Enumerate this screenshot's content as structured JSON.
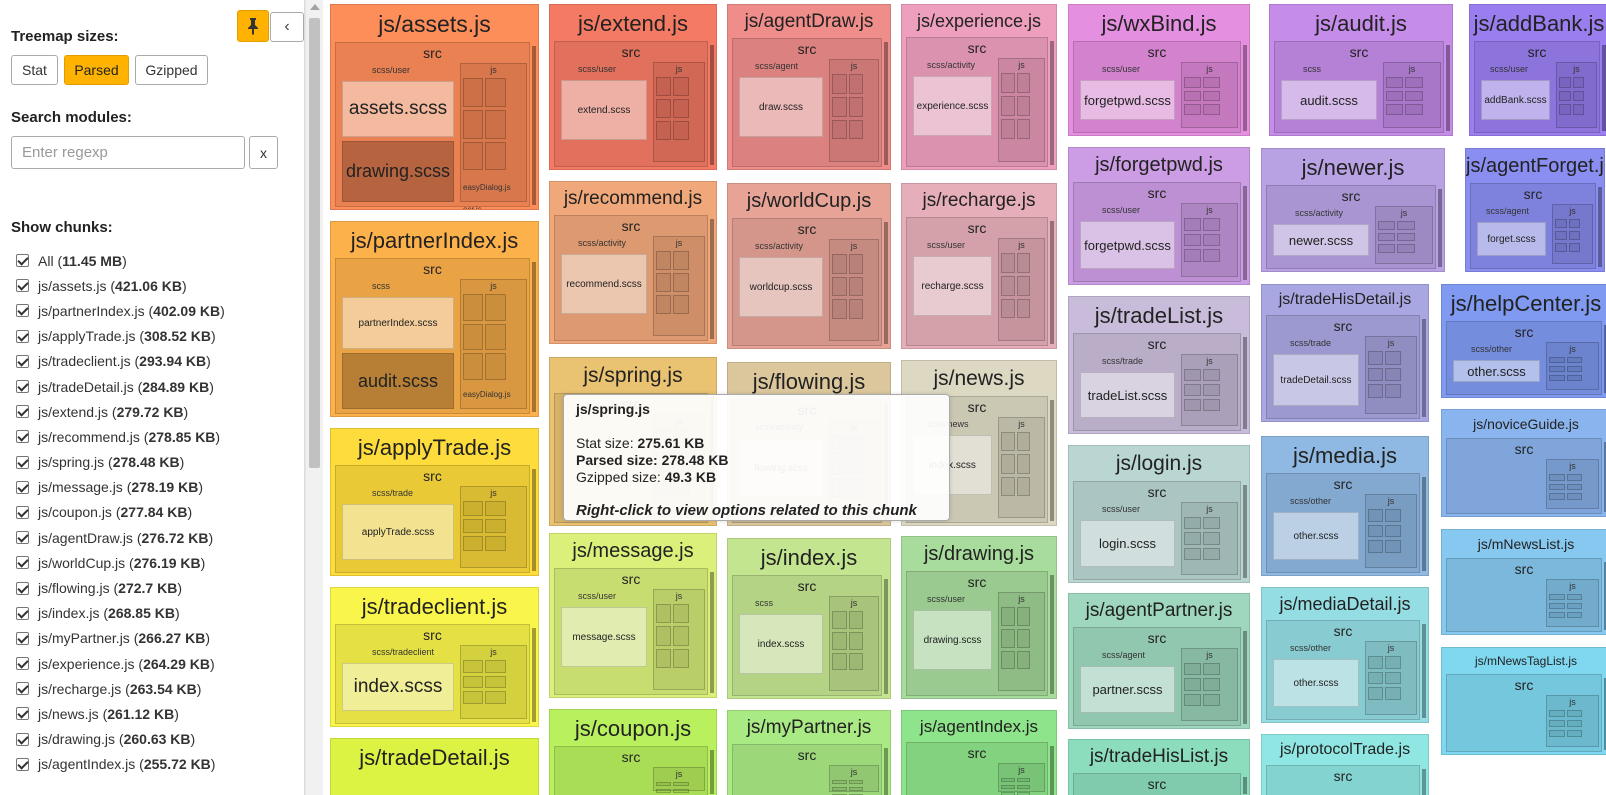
{
  "sidebar": {
    "treemap_sizes_label": "Treemap sizes:",
    "size_buttons": [
      {
        "label": "Stat",
        "active": false
      },
      {
        "label": "Parsed",
        "active": true
      },
      {
        "label": "Gzipped",
        "active": false
      }
    ],
    "search_label": "Search modules:",
    "search_placeholder": "Enter regexp",
    "search_value": "",
    "clear_label": "x",
    "collapse_icon": "‹",
    "show_chunks_label": "Show chunks:",
    "chunks": [
      {
        "name": "All",
        "size": "11.45 MB"
      },
      {
        "name": "js/assets.js",
        "size": "421.06 KB"
      },
      {
        "name": "js/partnerIndex.js",
        "size": "402.09 KB"
      },
      {
        "name": "js/applyTrade.js",
        "size": "308.52 KB"
      },
      {
        "name": "js/tradeclient.js",
        "size": "293.94 KB"
      },
      {
        "name": "js/tradeDetail.js",
        "size": "284.89 KB"
      },
      {
        "name": "js/extend.js",
        "size": "279.72 KB"
      },
      {
        "name": "js/recommend.js",
        "size": "278.85 KB"
      },
      {
        "name": "js/spring.js",
        "size": "278.48 KB"
      },
      {
        "name": "js/message.js",
        "size": "278.19 KB"
      },
      {
        "name": "js/coupon.js",
        "size": "277.84 KB"
      },
      {
        "name": "js/agentDraw.js",
        "size": "276.72 KB"
      },
      {
        "name": "js/worldCup.js",
        "size": "276.19 KB"
      },
      {
        "name": "js/flowing.js",
        "size": "272.7 KB"
      },
      {
        "name": "js/index.js",
        "size": "268.85 KB"
      },
      {
        "name": "js/myPartner.js",
        "size": "266.27 KB"
      },
      {
        "name": "js/experience.js",
        "size": "264.29 KB"
      },
      {
        "name": "js/recharge.js",
        "size": "263.54 KB"
      },
      {
        "name": "js/news.js",
        "size": "261.12 KB"
      },
      {
        "name": "js/drawing.js",
        "size": "260.63 KB"
      },
      {
        "name": "js/agentIndex.js",
        "size": "255.72 KB"
      }
    ]
  },
  "treemap": {
    "src_label": "src",
    "js_label": "js",
    "chunks": [
      {
        "title": "js/assets.js",
        "color": "#fd8d59",
        "sub": "scss/user",
        "mod": "assets.scss",
        "mod2": "drawing.scss",
        "extra": [
          "easyDialog.js",
          "ocr.js"
        ]
      },
      {
        "title": "js/partnerIndex.js",
        "color": "#fdb14b",
        "sub": "scss",
        "mod": "partnerIndex.scss",
        "mod2": "audit.scss",
        "extra": [
          "easyDialog.js"
        ]
      },
      {
        "title": "js/applyTrade.js",
        "color": "#fddc3b",
        "sub": "scss/trade",
        "mod": "applyTrade.scss"
      },
      {
        "title": "js/tradeclient.js",
        "color": "#f9f54a",
        "sub": "scss/tradeclient",
        "mod": "index.scss"
      },
      {
        "title": "js/tradeDetail.js",
        "color": "#ddf344",
        "sub": "",
        "mod": ""
      },
      {
        "title": "js/extend.js",
        "color": "#f57a64",
        "sub": "scss/user",
        "mod": "extend.scss"
      },
      {
        "title": "js/recommend.js",
        "color": "#f0a77a",
        "sub": "scss/activity",
        "mod": "recommend.scss"
      },
      {
        "title": "js/spring.js",
        "color": "#e9c272",
        "sub": "",
        "mod": ""
      },
      {
        "title": "js/message.js",
        "color": "#daf07a",
        "sub": "scss/user",
        "mod": "message.scss"
      },
      {
        "title": "js/coupon.js",
        "color": "#b9f05e",
        "sub": "",
        "mod": ""
      },
      {
        "title": "js/agentDraw.js",
        "color": "#ee8d8a",
        "sub": "scss/agent",
        "mod": "draw.scss"
      },
      {
        "title": "js/worldCup.js",
        "color": "#e6a396",
        "sub": "scss/activity",
        "mod": "worldcup.scss"
      },
      {
        "title": "js/flowing.js",
        "color": "#dcc79d",
        "sub": "scss/activity",
        "mod": "flowing.scss"
      },
      {
        "title": "js/index.js",
        "color": "#c4e590",
        "sub": "scss",
        "mod": "index.scss"
      },
      {
        "title": "js/myPartner.js",
        "color": "#aaea85",
        "sub": "",
        "mod": ""
      },
      {
        "title": "js/experience.js",
        "color": "#ee9fbd",
        "sub": "scss/activity",
        "mod": "experience.scss"
      },
      {
        "title": "js/recharge.js",
        "color": "#e6aeb8",
        "sub": "scss/user",
        "mod": "recharge.scss"
      },
      {
        "title": "js/news.js",
        "color": "#dcd8c2",
        "sub": "scss/news",
        "mod": "index.scss"
      },
      {
        "title": "js/drawing.js",
        "color": "#a8dc9c",
        "sub": "scss/user",
        "mod": "drawing.scss"
      },
      {
        "title": "js/agentIndex.js",
        "color": "#8ee48a",
        "sub": "",
        "mod": ""
      },
      {
        "title": "js/wxBind.js",
        "color": "#e58fe0",
        "sub": "scss/user",
        "mod": "forgetpwd.scss"
      },
      {
        "title": "js/forgetpwd.js",
        "color": "#cc9de4",
        "sub": "scss/user",
        "mod": "forgetpwd.scss"
      },
      {
        "title": "js/tradeList.js",
        "color": "#c9bcda",
        "sub": "scss/trade",
        "mod": "tradeList.scss"
      },
      {
        "title": "js/login.js",
        "color": "#b9d6d3",
        "sub": "scss/user",
        "mod": "login.scss"
      },
      {
        "title": "js/agentPartner.js",
        "color": "#9ed7be",
        "sub": "scss/agent",
        "mod": "partner.scss"
      },
      {
        "title": "js/tradeHisList.js",
        "color": "#8bddbd",
        "sub": "",
        "mod": ""
      },
      {
        "title": "js/audit.js",
        "color": "#c58cea",
        "sub": "scss",
        "mod": "audit.scss"
      },
      {
        "title": "js/newer.js",
        "color": "#b8a2e4",
        "sub": "scss/activity",
        "mod": "newer.scss"
      },
      {
        "title": "js/tradeHisDetail.js",
        "color": "#a9a7e2",
        "sub": "scss/trade",
        "mod": "tradeDetail.scss"
      },
      {
        "title": "js/media.js",
        "color": "#8fb8e2",
        "sub": "scss/other",
        "mod": "other.scss"
      },
      {
        "title": "js/mediaDetail.js",
        "color": "#94dde2",
        "sub": "scss/other",
        "mod": "other.scss"
      },
      {
        "title": "js/protocolTrade.js",
        "color": "#8fe6e3",
        "sub": "",
        "mod": ""
      },
      {
        "title": "js/addBank.js",
        "color": "#9a7ef0",
        "sub": "scss/user",
        "mod": "addBank.scss"
      },
      {
        "title": "js/agentForget.js",
        "color": "#8a8ef0",
        "sub": "scss/agent",
        "mod": "forget.scss"
      },
      {
        "title": "js/helpCenter.js",
        "color": "#7f9af0",
        "sub": "scss/other",
        "mod": "other.scss"
      },
      {
        "title": "js/noviceGuide.js",
        "color": "#8ab4ee",
        "sub": "",
        "mod": ""
      },
      {
        "title": "js/mNewsList.js",
        "color": "#86c8ef",
        "sub": "",
        "mod": ""
      },
      {
        "title": "js/mNewsTagList.js",
        "color": "#7fd8f0",
        "sub": "",
        "mod": ""
      }
    ]
  },
  "tooltip": {
    "title": "js/spring.js",
    "stat_label": "Stat size:",
    "stat_value": "275.61 KB",
    "parsed_label": "Parsed size:",
    "parsed_value": "278.48 KB",
    "gzip_label": "Gzipped size:",
    "gzip_value": "49.3 KB",
    "note": "Right-click to view options related to this chunk"
  }
}
